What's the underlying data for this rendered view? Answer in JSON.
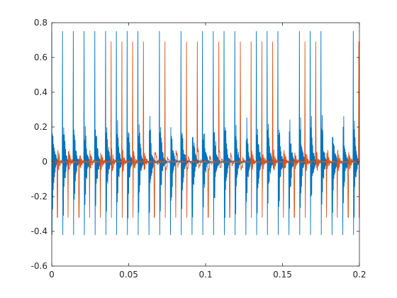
{
  "chart_data": {
    "type": "line",
    "title": "",
    "xlabel": "",
    "ylabel": "",
    "xlim": [
      0,
      0.2
    ],
    "ylim": [
      -0.6,
      0.8
    ],
    "grid": false,
    "legend": "none",
    "x_ticks": [
      0,
      0.05,
      0.1,
      0.15,
      0.2
    ],
    "x_tick_labels": [
      "0",
      "0.05",
      "0.1",
      "0.15",
      "0.2"
    ],
    "y_ticks": [
      -0.6,
      -0.4,
      -0.2,
      0,
      0.2,
      0.4,
      0.6,
      0.8
    ],
    "y_tick_labels": [
      "-0.6",
      "-0.4",
      "-0.2",
      "0",
      "0.2",
      "0.4",
      "0.6",
      "0.8"
    ],
    "series": [
      {
        "color": "#0072BD",
        "sample_period": 0.0002,
        "pulse_period": 0.007,
        "pulse_start": 0.0,
        "peak_max": 0.75,
        "peak_min": -0.42,
        "secondary_max": 0.2,
        "secondary_min": -0.33
      },
      {
        "color": "#D95319",
        "sample_period": 0.0002,
        "pulse_period": 0.007,
        "pulse_start": 0.0035,
        "peak_max": 0.69,
        "peak_min": -0.32,
        "secondary_max": 0.08,
        "secondary_min": -0.05
      }
    ]
  }
}
